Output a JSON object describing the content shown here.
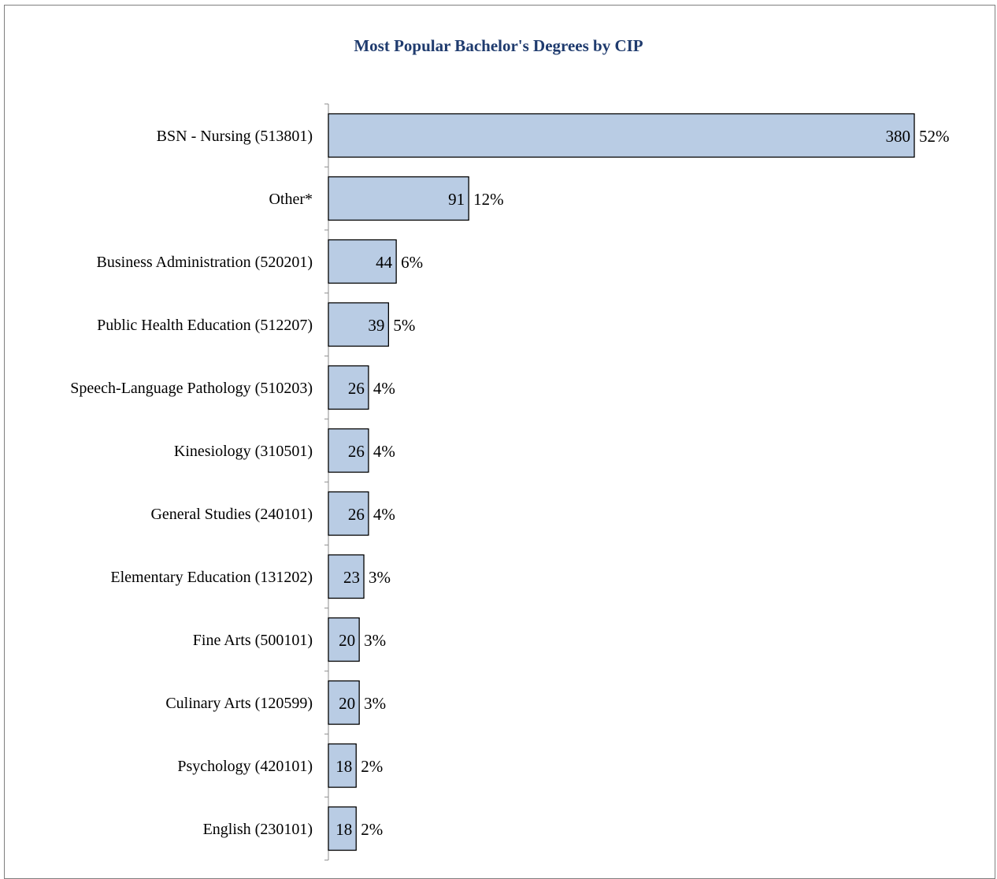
{
  "chart_data": {
    "type": "bar",
    "orientation": "horizontal",
    "title": "Most Popular Bachelor's Degrees by CIP",
    "categories": [
      "BSN - Nursing (513801)",
      "Other*",
      "Business Administration (520201)",
      "Public Health Education (512207)",
      "Speech-Language Pathology (510203)",
      "Kinesiology (310501)",
      "General Studies (240101)",
      "Elementary Education (131202)",
      "Fine Arts (500101)",
      "Culinary Arts (120599)",
      "Psychology (420101)",
      "English (230101)"
    ],
    "values": [
      380,
      91,
      44,
      39,
      26,
      26,
      26,
      23,
      20,
      20,
      18,
      18
    ],
    "percent_labels": [
      "52%",
      "12%",
      "6%",
      "5%",
      "4%",
      "4%",
      "4%",
      "3%",
      "3%",
      "3%",
      "2%",
      "2%"
    ],
    "xlim": [
      0,
      380
    ],
    "grid": false,
    "legend": "none",
    "bar_color": "#b9cce4",
    "bar_edge_color": "#000000",
    "title_color": "#1f3b6e"
  }
}
